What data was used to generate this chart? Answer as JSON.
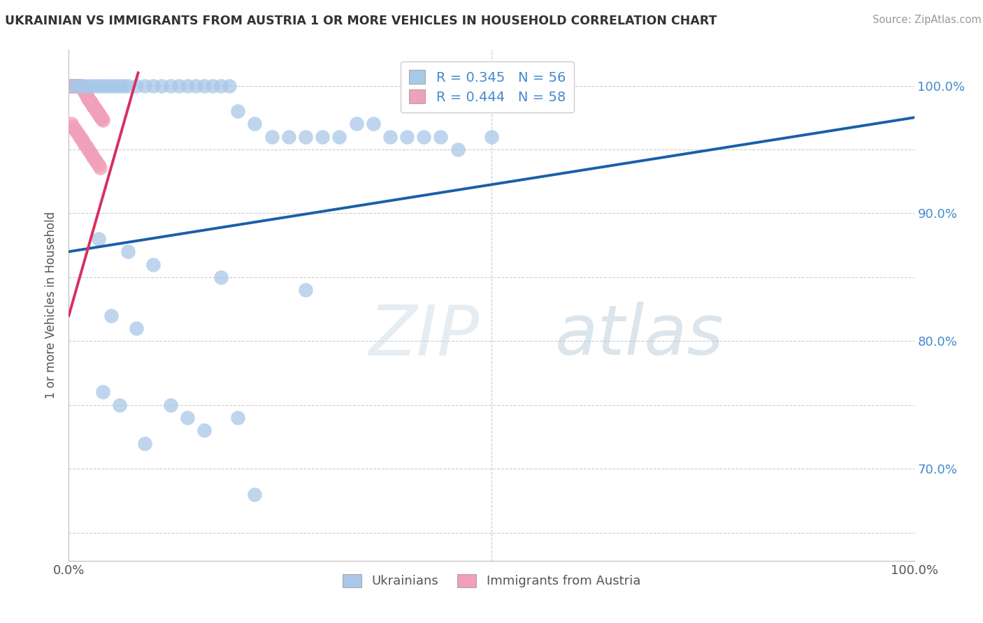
{
  "title": "UKRAINIAN VS IMMIGRANTS FROM AUSTRIA 1 OR MORE VEHICLES IN HOUSEHOLD CORRELATION CHART",
  "source": "Source: ZipAtlas.com",
  "ylabel": "1 or more Vehicles in Household",
  "xmin": 0.0,
  "xmax": 1.0,
  "ymin": 0.628,
  "ymax": 1.028,
  "blue_R": 0.345,
  "blue_N": 56,
  "pink_R": 0.444,
  "pink_N": 58,
  "blue_color": "#a8c8e8",
  "blue_line_color": "#1a5fa8",
  "pink_color": "#f0a0b8",
  "pink_line_color": "#d83060",
  "blue_label": "Ukrainians",
  "pink_label": "Immigrants from Austria",
  "blue_x": [
    0.005,
    0.01,
    0.015,
    0.02,
    0.025,
    0.03,
    0.035,
    0.04,
    0.045,
    0.05,
    0.055,
    0.06,
    0.065,
    0.07,
    0.08,
    0.09,
    0.1,
    0.11,
    0.12,
    0.13,
    0.14,
    0.15,
    0.16,
    0.17,
    0.18,
    0.19,
    0.2,
    0.22,
    0.24,
    0.26,
    0.28,
    0.3,
    0.32,
    0.34,
    0.36,
    0.38,
    0.4,
    0.42,
    0.44,
    0.46,
    0.5,
    0.035,
    0.07,
    0.1,
    0.18,
    0.28,
    0.05,
    0.08,
    0.04,
    0.06,
    0.12,
    0.14,
    0.2,
    0.16,
    0.09,
    0.22
  ],
  "blue_y": [
    1.0,
    1.0,
    1.0,
    1.0,
    1.0,
    1.0,
    1.0,
    1.0,
    1.0,
    1.0,
    1.0,
    1.0,
    1.0,
    1.0,
    1.0,
    1.0,
    1.0,
    1.0,
    1.0,
    1.0,
    1.0,
    1.0,
    1.0,
    1.0,
    1.0,
    1.0,
    0.98,
    0.97,
    0.96,
    0.96,
    0.96,
    0.96,
    0.96,
    0.97,
    0.97,
    0.96,
    0.96,
    0.96,
    0.96,
    0.95,
    0.96,
    0.88,
    0.87,
    0.86,
    0.85,
    0.84,
    0.82,
    0.81,
    0.76,
    0.75,
    0.75,
    0.74,
    0.74,
    0.73,
    0.72,
    0.68
  ],
  "pink_x": [
    0.001,
    0.002,
    0.003,
    0.004,
    0.005,
    0.006,
    0.007,
    0.008,
    0.009,
    0.01,
    0.011,
    0.012,
    0.013,
    0.014,
    0.015,
    0.016,
    0.017,
    0.018,
    0.019,
    0.02,
    0.021,
    0.022,
    0.023,
    0.024,
    0.025,
    0.026,
    0.027,
    0.028,
    0.029,
    0.03,
    0.031,
    0.032,
    0.033,
    0.034,
    0.035,
    0.036,
    0.037,
    0.038,
    0.039,
    0.04,
    0.003,
    0.005,
    0.007,
    0.009,
    0.011,
    0.013,
    0.015,
    0.017,
    0.019,
    0.021,
    0.023,
    0.025,
    0.027,
    0.029,
    0.031,
    0.033,
    0.035,
    0.037
  ],
  "pink_y": [
    1.0,
    1.0,
    1.0,
    1.0,
    1.0,
    1.0,
    1.0,
    1.0,
    1.0,
    1.0,
    1.0,
    1.0,
    1.0,
    1.0,
    1.0,
    0.998,
    0.997,
    0.996,
    0.995,
    0.994,
    0.992,
    0.991,
    0.99,
    0.989,
    0.988,
    0.987,
    0.986,
    0.985,
    0.984,
    0.983,
    0.982,
    0.981,
    0.98,
    0.979,
    0.978,
    0.977,
    0.976,
    0.975,
    0.974,
    0.973,
    0.97,
    0.968,
    0.966,
    0.964,
    0.962,
    0.96,
    0.958,
    0.956,
    0.954,
    0.952,
    0.95,
    0.948,
    0.946,
    0.944,
    0.942,
    0.94,
    0.938,
    0.936
  ],
  "blue_trend_x": [
    0.0,
    1.0
  ],
  "blue_trend_y": [
    0.87,
    0.975
  ],
  "pink_trend_x": [
    0.0,
    0.082
  ],
  "pink_trend_y": [
    0.82,
    1.01
  ],
  "ytick_positions": [
    0.65,
    0.7,
    0.75,
    0.8,
    0.85,
    0.9,
    0.95,
    1.0
  ],
  "ytick_labels": [
    "",
    "70.0%",
    "",
    "80.0%",
    "",
    "90.0%",
    "",
    "100.0%"
  ]
}
